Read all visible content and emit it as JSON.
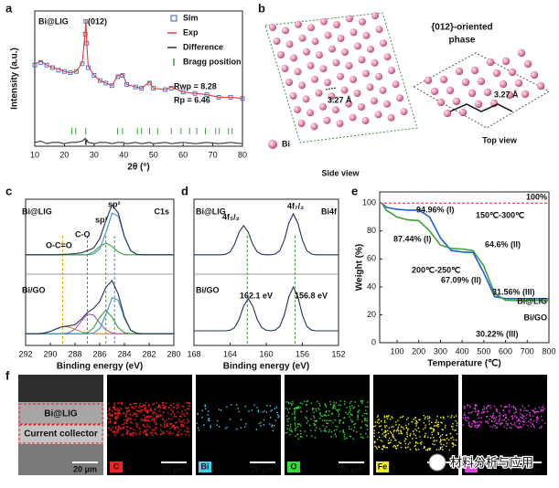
{
  "panel_labels": [
    "a",
    "b",
    "c",
    "d",
    "e",
    "f"
  ],
  "chart_data": [
    {
      "type": "line",
      "xlabel": "2θ (°)",
      "ylabel": "Intensity (a.u.)",
      "xlim": [
        10,
        80
      ],
      "xticks": [
        10,
        20,
        30,
        40,
        50,
        60,
        70,
        80
      ],
      "ylim": [
        0,
        105
      ],
      "annotations": [
        "Bi@LIG",
        "(012)",
        "Rwp = 8.28",
        "Rp = 6.46"
      ],
      "x": [
        10,
        12,
        14,
        16,
        18,
        20,
        22,
        24,
        26,
        27,
        27.2,
        27.5,
        28,
        30,
        32,
        34,
        36,
        38,
        39.6,
        41,
        44,
        46,
        48.7,
        50,
        54,
        56,
        60,
        64,
        68,
        72,
        76,
        80
      ],
      "series": [
        {
          "name": "Sim",
          "color": "#2f5fc4",
          "marker": "square",
          "values": [
            63,
            65,
            63,
            61,
            59,
            58,
            57,
            58,
            64,
            87,
            97,
            80,
            61,
            55,
            51,
            49,
            47,
            54,
            55,
            48,
            46,
            45,
            49,
            45,
            44,
            45,
            42,
            41,
            40,
            38,
            38,
            37
          ]
        },
        {
          "name": "Exp",
          "color": "#e0403a",
          "values": [
            64,
            66,
            63,
            61,
            60,
            58,
            57,
            58,
            65,
            88,
            98,
            80,
            62,
            55,
            51,
            49,
            47,
            55,
            56,
            48,
            46,
            45,
            50,
            45,
            44,
            46,
            42,
            41,
            40,
            38,
            38,
            37
          ]
        },
        {
          "name": "Difference",
          "color": "#333333",
          "values": [
            3,
            4,
            2,
            3,
            3,
            2,
            3,
            3,
            4,
            6,
            1,
            5,
            3,
            2,
            3,
            3,
            2,
            3,
            3,
            2,
            3,
            2,
            3,
            2,
            3,
            2,
            3,
            2,
            3,
            2,
            3,
            2
          ]
        }
      ],
      "bragg": {
        "name": "Bragg position",
        "color": "#3aa13a",
        "x": [
          22.5,
          23.8,
          27.2,
          37.9,
          39.6,
          44.6,
          46.0,
          48.7,
          51.4,
          56.0,
          59.3,
          62.2,
          64.6,
          67.5,
          71.0,
          72.2,
          75.3,
          76.5
        ]
      }
    },
    {
      "type": "line",
      "xlabel": "Binding energy (eV)",
      "xlim": [
        292,
        280
      ],
      "xticks": [
        292,
        290,
        288,
        286,
        284,
        282,
        280
      ],
      "ylim": [
        0,
        100
      ],
      "annotations": [
        "Bi@LIG",
        "C1s",
        "sp²",
        "sp³",
        "C-O",
        "O-C=O",
        "Bi/GO"
      ],
      "guides": [
        {
          "x": 289,
          "color": "#e0a800"
        },
        {
          "x": 287,
          "color": "#9b59b6"
        },
        {
          "x": 285.5,
          "color": "#3aa13a"
        },
        {
          "x": 284.8,
          "color": "#3f8fd6"
        }
      ],
      "x": [
        292,
        291.5,
        291,
        290.5,
        290,
        289.5,
        289,
        288.5,
        288,
        287.5,
        287,
        286.5,
        286,
        285.5,
        285,
        284.5,
        284,
        283.5,
        283,
        282.5,
        282,
        281.5,
        281,
        280.5,
        280
      ],
      "series": [
        {
          "color": "#3f8fd6",
          "values": [
            62,
            62,
            62,
            62,
            62,
            62,
            62,
            62,
            62,
            62,
            62,
            62.5,
            66,
            77.3,
            90.4,
            88.5,
            74.3,
            64.9,
            62.3,
            62,
            62,
            62,
            62,
            62,
            62
          ]
        },
        {
          "color": "#3aa13a",
          "values": [
            62,
            62,
            62,
            62,
            62,
            62,
            62,
            62,
            62,
            62,
            62,
            64,
            67.7,
            70,
            67.7,
            64,
            62,
            62,
            62,
            62,
            62,
            62,
            62,
            62,
            62
          ]
        },
        {
          "color": "#23305e",
          "values": [
            62,
            62,
            62,
            62,
            62,
            62,
            62.3,
            62.5,
            62.8,
            63.4,
            64.8,
            66.6,
            73,
            85.3,
            96.1,
            90.5,
            74.3,
            64.9,
            62.3,
            62,
            62,
            62,
            62,
            62,
            62
          ]
        },
        {
          "color": "#d98a1f",
          "values": [
            8,
            8,
            8,
            8.5,
            9.6,
            11.4,
            12.9,
            12.7,
            11,
            9.4,
            8.4,
            8,
            8,
            8,
            8,
            8,
            8,
            8,
            8,
            8,
            8,
            8,
            8,
            8,
            8
          ]
        },
        {
          "color": "#9b59b6",
          "values": [
            8,
            8,
            8,
            8,
            8,
            8,
            8,
            8.7,
            11.2,
            16.5,
            21.4,
            20.8,
            15.3,
            10.5,
            8.5,
            8,
            8,
            8,
            8,
            8,
            8,
            8,
            8,
            8,
            8
          ]
        },
        {
          "color": "#3aa13a",
          "values": [
            8,
            8,
            8,
            8,
            8,
            8,
            8,
            8,
            8,
            8,
            8.7,
            12,
            19.3,
            24,
            19.3,
            12,
            8.7,
            8,
            8,
            8,
            8,
            8,
            8,
            8,
            8
          ]
        },
        {
          "color": "#3f8fd6",
          "values": [
            8,
            8,
            8,
            8,
            8,
            8,
            8,
            8,
            8,
            8,
            8,
            8.5,
            11.5,
            21.3,
            32.6,
            31,
            18.7,
            10.5,
            8.3,
            8,
            8,
            8,
            8,
            8,
            8
          ]
        },
        {
          "color": "#23305e",
          "values": [
            8,
            8,
            8,
            8.5,
            9.6,
            11.4,
            12.9,
            13.4,
            14.2,
            17.9,
            22.5,
            25.3,
            30.1,
            39.8,
            44.4,
            35,
            19.4,
            10.5,
            8.3,
            8,
            8,
            8,
            8,
            8,
            8
          ]
        }
      ]
    },
    {
      "type": "line",
      "xlabel": "Binding energy (eV)",
      "xlim": [
        168,
        152
      ],
      "xticks": [
        168,
        164,
        160,
        156,
        152
      ],
      "ylim": [
        0,
        100
      ],
      "annotations": [
        "Bi@LIG",
        "4f₅/₂",
        "4f₇/₂",
        "Bi4f",
        "Bi/GO",
        "162.1 eV",
        "156.8 eV"
      ],
      "guides": [
        {
          "x": 162.1,
          "color": "#3aa13a"
        },
        {
          "x": 156.8,
          "color": "#3aa13a"
        }
      ],
      "x": [
        168,
        167.5,
        167,
        166.5,
        166,
        165.5,
        165,
        164.5,
        164,
        163.5,
        163,
        162.5,
        162,
        161.5,
        161,
        160.5,
        160,
        159.5,
        159,
        158.5,
        158,
        157.5,
        157,
        156.5,
        156,
        155.5,
        155,
        154.5,
        154,
        153.5,
        153,
        152.5,
        152
      ],
      "series": [
        {
          "color": "#23305e",
          "values": [
            62,
            62,
            62,
            62,
            62,
            62,
            62,
            62.3,
            64,
            69.2,
            77.5,
            82,
            77.5,
            69.2,
            64,
            62.3,
            62,
            62,
            62.5,
            64.8,
            72.1,
            83.7,
            90,
            83.7,
            72.1,
            64.8,
            62.5,
            62,
            62,
            62,
            62,
            62,
            62
          ]
        },
        {
          "color": "#23305e",
          "values": [
            10,
            10,
            10,
            10,
            10,
            10,
            10,
            10,
            10.4,
            12.2,
            17.9,
            27,
            32,
            27,
            17.9,
            12.2,
            10.4,
            10,
            10.5,
            13,
            20.8,
            33.3,
            40,
            33.3,
            20.8,
            13,
            10.5,
            10,
            10,
            10,
            10,
            10,
            10
          ]
        }
      ]
    },
    {
      "type": "line",
      "xlabel": "Temperature (℃)",
      "ylabel": "Weight (%)",
      "xlim": [
        20,
        800
      ],
      "xticks": [
        100,
        200,
        300,
        400,
        500,
        600,
        700,
        800
      ],
      "ylim": [
        0,
        108
      ],
      "yticks": [
        0,
        20,
        40,
        60,
        80,
        100
      ],
      "reference": {
        "value": 100,
        "label": "100%",
        "color": "#e02020"
      },
      "annotations": [
        "94.96% (I)",
        "150℃-300℃",
        "87.44% (I)",
        "64.6% (II)",
        "200℃-250℃",
        "67.09% (II)",
        "31.56% (III)",
        "30.22% (III)"
      ],
      "series": [
        {
          "name": "Bi@LIG",
          "color": "#1f5fd0",
          "x": [
            30,
            50,
            100,
            150,
            200,
            250,
            300,
            350,
            400,
            450,
            500,
            550,
            600,
            650,
            700,
            750,
            800
          ],
          "values": [
            100,
            97,
            95.5,
            95,
            94.96,
            90,
            75,
            66,
            65,
            64.6,
            50,
            33,
            31.6,
            31.56,
            31.56,
            31.56,
            31.56
          ]
        },
        {
          "name": "Bi/GO",
          "color": "#3aa13a",
          "x": [
            30,
            50,
            100,
            150,
            200,
            250,
            300,
            350,
            400,
            450,
            500,
            550,
            600,
            650,
            700,
            750,
            800
          ],
          "values": [
            100,
            95,
            90,
            88,
            87.44,
            80,
            70,
            67.5,
            67.09,
            66,
            55,
            35,
            30.5,
            30.22,
            30.22,
            30.22,
            30.22
          ]
        }
      ]
    }
  ],
  "panel_b": {
    "title_lines": [
      "{012}-oriented",
      "phase"
    ],
    "distance_labels": [
      "3.27 Å",
      "3.27 Å"
    ],
    "legend": "Bi",
    "views": [
      "Side view",
      "Top view"
    ]
  },
  "panel_f": {
    "overlay_labels": [
      "Bi@LIG",
      "Current collector"
    ],
    "scale_bars": [
      "20 μm",
      "20 μm",
      "20 μm",
      "20 μm",
      "20 μm",
      "20 μm"
    ],
    "elements": [
      {
        "symbol": "C",
        "color": "#ff2020"
      },
      {
        "symbol": "Bi",
        "color": "#40d0f0"
      },
      {
        "symbol": "O",
        "color": "#30e030"
      },
      {
        "symbol": "Fe",
        "color": "#f0f020"
      }
    ],
    "extra_map_color": "#e040e0"
  },
  "watermark": "材料分析与应用"
}
